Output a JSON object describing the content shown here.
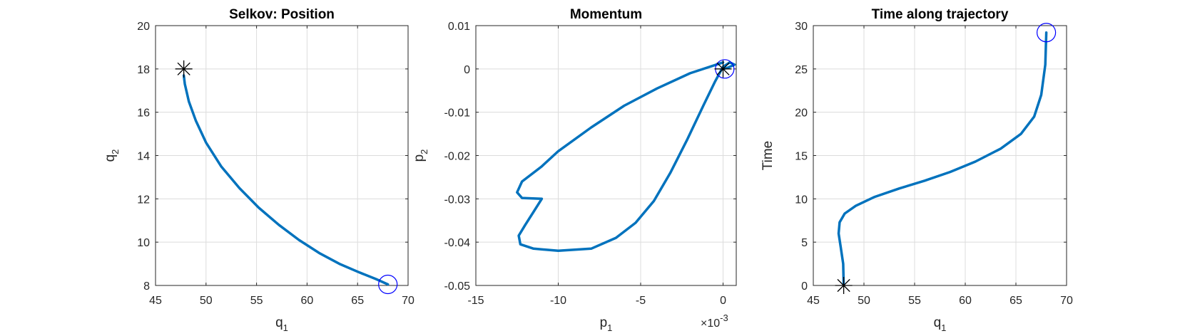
{
  "chart_data": [
    {
      "type": "line",
      "title": "Selkov: Position",
      "xlabel": "q",
      "xlabel_sub": "1",
      "ylabel": "q",
      "ylabel_sub": "2",
      "xlim": [
        45,
        70
      ],
      "ylim": [
        8,
        20
      ],
      "xticks": [
        45,
        50,
        55,
        60,
        65,
        70
      ],
      "yticks": [
        8,
        10,
        12,
        14,
        16,
        18,
        20
      ],
      "xtick_labels": [
        "45",
        "50",
        "55",
        "60",
        "65",
        "70"
      ],
      "ytick_labels": [
        "8",
        "10",
        "12",
        "14",
        "16",
        "18",
        "20"
      ],
      "grid": true,
      "line_color": "#0072bd",
      "series": [
        {
          "x": [
            47.8,
            47.9,
            48.3,
            49.0,
            50.0,
            51.5,
            53.3,
            55.2,
            57.2,
            59.2,
            61.2,
            63.2,
            65.2,
            66.8,
            68.0
          ],
          "y": [
            17.7,
            17.3,
            16.5,
            15.6,
            14.6,
            13.5,
            12.5,
            11.6,
            10.8,
            10.1,
            9.5,
            9.0,
            8.6,
            8.3,
            8.05
          ]
        }
      ],
      "start_marker": {
        "x": 47.8,
        "y": 18.0,
        "symbol": "asterisk",
        "color": "#000000"
      },
      "end_marker": {
        "x": 68.0,
        "y": 8.05,
        "symbol": "circle",
        "color": "#0000ff"
      }
    },
    {
      "type": "line",
      "title": "Momentum",
      "xlabel": "p",
      "xlabel_sub": "1",
      "ylabel": "p",
      "ylabel_sub": "2",
      "xlim": [
        -0.015,
        0.0008
      ],
      "ylim": [
        -0.05,
        0.01
      ],
      "xticks": [
        -0.015,
        -0.01,
        -0.005,
        0
      ],
      "yticks": [
        -0.05,
        -0.04,
        -0.03,
        -0.02,
        -0.01,
        0,
        0.01
      ],
      "xtick_labels": [
        "-15",
        "-10",
        "-5",
        "0"
      ],
      "ytick_labels": [
        "-0.05",
        "-0.04",
        "-0.03",
        "-0.02",
        "-0.01",
        "0",
        "0.01"
      ],
      "x_exponent_base": "×10",
      "x_exponent_power": "-3",
      "grid": true,
      "line_color": "#0072bd",
      "series": [
        {
          "x": [
            0,
            -0.002,
            -0.004,
            -0.006,
            -0.008,
            -0.01,
            -0.011,
            -0.0122,
            -0.0125,
            -0.0122,
            -0.011,
            -0.0115,
            -0.012,
            -0.0124,
            -0.0123,
            -0.0115,
            -0.01,
            -0.008,
            -0.0065,
            -0.0053,
            -0.0042,
            -0.0032,
            -0.0022,
            -0.0012,
            -0.0005,
            0.0,
            0.0004,
            0.0007,
            0.0003,
            0.0
          ],
          "y": [
            0.0015,
            -0.001,
            -0.0045,
            -0.0085,
            -0.0135,
            -0.019,
            -0.0225,
            -0.026,
            -0.0285,
            -0.0298,
            -0.03,
            -0.033,
            -0.036,
            -0.0385,
            -0.0405,
            -0.0415,
            -0.042,
            -0.0415,
            -0.039,
            -0.0355,
            -0.0305,
            -0.024,
            -0.0165,
            -0.0085,
            -0.003,
            0.0005,
            0.0015,
            0.001,
            0.0003,
            0.0
          ]
        }
      ],
      "start_marker": {
        "x": 0,
        "y": 0,
        "symbol": "asterisk",
        "color": "#000000"
      },
      "end_marker": {
        "x": 0.0001,
        "y": 0,
        "symbol": "circle",
        "color": "#0000ff"
      }
    },
    {
      "type": "line",
      "title": "Time along trajectory",
      "xlabel": "q",
      "xlabel_sub": "1",
      "ylabel": "Time",
      "ylabel_sub": "",
      "xlim": [
        45,
        70
      ],
      "ylim": [
        0,
        30
      ],
      "xticks": [
        45,
        50,
        55,
        60,
        65,
        70
      ],
      "yticks": [
        0,
        5,
        10,
        15,
        20,
        25,
        30
      ],
      "xtick_labels": [
        "45",
        "50",
        "55",
        "60",
        "65",
        "70"
      ],
      "ytick_labels": [
        "0",
        "5",
        "10",
        "15",
        "20",
        "25",
        "30"
      ],
      "grid": true,
      "line_color": "#0072bd",
      "series": [
        {
          "x": [
            48.0,
            47.95,
            47.7,
            47.5,
            47.6,
            48.1,
            49.2,
            51.0,
            53.5,
            56.0,
            58.5,
            61.0,
            63.5,
            65.5,
            66.8,
            67.5,
            67.9,
            68.0
          ],
          "y": [
            0,
            2.5,
            4.5,
            6.0,
            7.3,
            8.3,
            9.2,
            10.2,
            11.2,
            12.1,
            13.1,
            14.3,
            15.8,
            17.5,
            19.5,
            22.0,
            25.5,
            29.2
          ]
        }
      ],
      "start_marker": {
        "x": 48.0,
        "y": 0,
        "symbol": "asterisk",
        "color": "#000000"
      },
      "end_marker": {
        "x": 68.0,
        "y": 29.2,
        "symbol": "circle",
        "color": "#0000ff"
      }
    }
  ]
}
